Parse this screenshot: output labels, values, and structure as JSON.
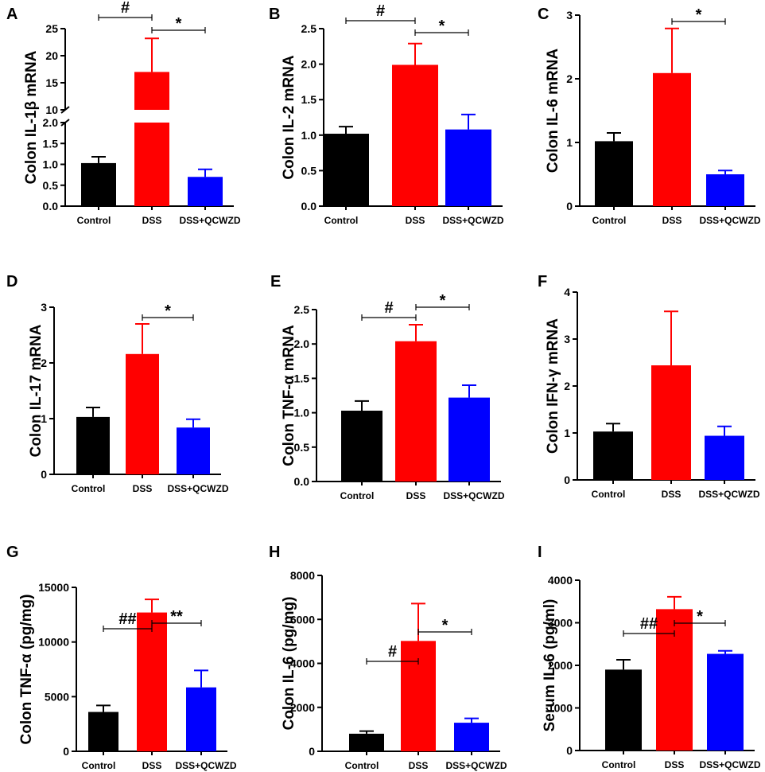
{
  "figure": {
    "categories": [
      "Control",
      "DSS",
      "DSS+QCWZD"
    ],
    "colors": {
      "Control": "#000000",
      "DSS": "#ff0000",
      "DSS+QCWZD": "#0000ff"
    }
  },
  "chart_data": [
    {
      "panel": "A",
      "type": "bar",
      "ylabel": "Colon IL-1β mRNA",
      "categories": [
        "Control",
        "DSS",
        "DSS+QCWZD"
      ],
      "values": [
        1.03,
        17.0,
        0.7
      ],
      "errors": [
        0.15,
        6.2,
        0.18
      ],
      "ylim": [
        0,
        25
      ],
      "broken_axis": [
        2.0,
        10
      ],
      "yticks": [
        "0.0",
        "0.5",
        "1.0",
        "1.5",
        "2.0",
        "10",
        "15",
        "20",
        "25"
      ],
      "significance": [
        {
          "from": 0,
          "to": 1,
          "label": "#"
        },
        {
          "from": 1,
          "to": 2,
          "label": "*"
        }
      ]
    },
    {
      "panel": "B",
      "type": "bar",
      "ylabel": "Colon IL-2 mRNA",
      "categories": [
        "Control",
        "DSS",
        "DSS+QCWZD"
      ],
      "values": [
        1.02,
        1.99,
        1.08
      ],
      "errors": [
        0.1,
        0.3,
        0.21
      ],
      "ylim": [
        0,
        2.5
      ],
      "yticks": [
        "0.0",
        "0.5",
        "1.0",
        "1.5",
        "2.0",
        "2.5"
      ],
      "significance": [
        {
          "from": 0,
          "to": 1,
          "label": "#"
        },
        {
          "from": 1,
          "to": 2,
          "label": "*"
        }
      ]
    },
    {
      "panel": "C",
      "type": "bar",
      "ylabel": "Colon IL-6 mRNA",
      "categories": [
        "Control",
        "DSS",
        "DSS+QCWZD"
      ],
      "values": [
        1.02,
        2.09,
        0.5
      ],
      "errors": [
        0.13,
        0.7,
        0.06
      ],
      "ylim": [
        0,
        3
      ],
      "yticks": [
        "0",
        "1",
        "2",
        "3"
      ],
      "significance": [
        {
          "from": 1,
          "to": 2,
          "label": "*"
        }
      ]
    },
    {
      "panel": "D",
      "type": "bar",
      "ylabel": "Colon IL-17 mRNA",
      "categories": [
        "Control",
        "DSS",
        "DSS+QCWZD"
      ],
      "values": [
        1.03,
        2.16,
        0.84
      ],
      "errors": [
        0.17,
        0.54,
        0.15
      ],
      "ylim": [
        0,
        3
      ],
      "yticks": [
        "0",
        "1",
        "2",
        "3"
      ],
      "significance": [
        {
          "from": 1,
          "to": 2,
          "label": "*"
        }
      ]
    },
    {
      "panel": "E",
      "type": "bar",
      "ylabel": "Colon TNF-α mRNA",
      "categories": [
        "Control",
        "DSS",
        "DSS+QCWZD"
      ],
      "values": [
        1.03,
        2.04,
        1.22
      ],
      "errors": [
        0.14,
        0.24,
        0.18
      ],
      "ylim": [
        0,
        2.5
      ],
      "yticks": [
        "0.0",
        "0.5",
        "1.0",
        "1.5",
        "2.0",
        "2.5"
      ],
      "significance": [
        {
          "from": 0,
          "to": 1,
          "label": "#"
        },
        {
          "from": 1,
          "to": 2,
          "label": "*"
        }
      ]
    },
    {
      "panel": "F",
      "type": "bar",
      "ylabel": "Colon IFN-γ mRNA",
      "categories": [
        "Control",
        "DSS",
        "DSS+QCWZD"
      ],
      "values": [
        1.03,
        2.44,
        0.94
      ],
      "errors": [
        0.17,
        1.15,
        0.2
      ],
      "ylim": [
        0,
        4
      ],
      "yticks": [
        "0",
        "1",
        "2",
        "3",
        "4"
      ],
      "significance": []
    },
    {
      "panel": "G",
      "type": "bar",
      "ylabel": "Colon TNF-α (pg/mg)",
      "categories": [
        "Control",
        "DSS",
        "DSS+QCWZD"
      ],
      "values": [
        3600,
        12700,
        5850
      ],
      "errors": [
        600,
        1200,
        1550
      ],
      "ylim": [
        0,
        15000
      ],
      "yticks": [
        "0",
        "5000",
        "10000",
        "15000"
      ],
      "significance": [
        {
          "from": 0,
          "to": 1,
          "label": "##"
        },
        {
          "from": 1,
          "to": 2,
          "label": "**"
        }
      ]
    },
    {
      "panel": "H",
      "type": "bar",
      "ylabel": "Colon IL-6 (pg/mg)",
      "categories": [
        "Control",
        "DSS",
        "DSS+QCWZD"
      ],
      "values": [
        800,
        5020,
        1300
      ],
      "errors": [
        120,
        1700,
        200
      ],
      "ylim": [
        0,
        8000
      ],
      "yticks": [
        "0",
        "2000",
        "4000",
        "6000",
        "8000"
      ],
      "significance": [
        {
          "from": 0,
          "to": 1,
          "label": "#"
        },
        {
          "from": 1,
          "to": 2,
          "label": "*"
        }
      ]
    },
    {
      "panel": "I",
      "type": "bar",
      "ylabel": "Serum IL-6 (pg/ml)",
      "categories": [
        "Control",
        "DSS",
        "DSS+QCWZD"
      ],
      "values": [
        1900,
        3320,
        2270
      ],
      "errors": [
        230,
        290,
        70
      ],
      "ylim": [
        0,
        4000
      ],
      "yticks": [
        "0",
        "1000",
        "2000",
        "3000",
        "4000"
      ],
      "significance": [
        {
          "from": 0,
          "to": 1,
          "label": "##"
        },
        {
          "from": 1,
          "to": 2,
          "label": "*"
        }
      ]
    }
  ]
}
